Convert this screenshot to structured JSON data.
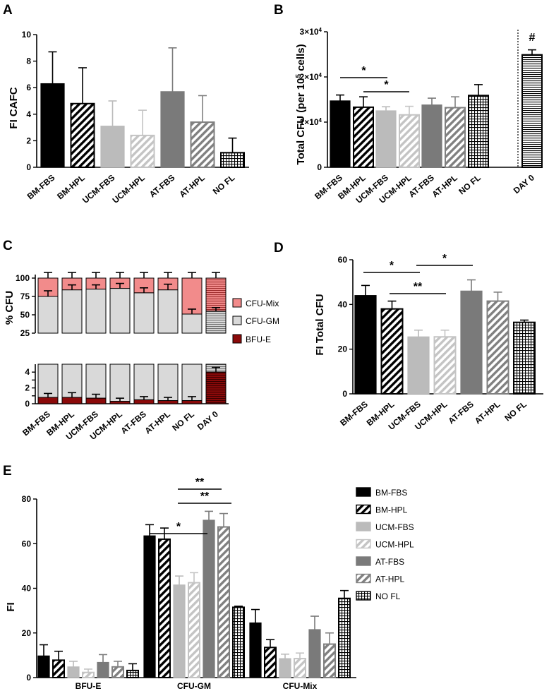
{
  "figure": {
    "panel_labels": [
      "A",
      "B",
      "C",
      "D",
      "E"
    ]
  },
  "groups": [
    "BM-FBS",
    "BM-HPL",
    "UCM-FBS",
    "UCM-HPL",
    "AT-FBS",
    "AT-HPL",
    "NO FL"
  ],
  "style_colors": {
    "black": "#000000",
    "light_gray": "#bbbbbb",
    "dark_gray": "#7a7a7a",
    "cfu_mix": "#f28b8b",
    "cfu_gm": "#d9d9d9",
    "bfu_e": "#8b0a0a"
  },
  "chart_data": [
    {
      "panel": "A",
      "type": "bar",
      "ylabel": "FI CAFC",
      "ylim": [
        0,
        10
      ],
      "yticks": [
        "0",
        "2",
        "4",
        "6",
        "8",
        "10"
      ],
      "categories": [
        "BM-FBS",
        "BM-HPL",
        "UCM-FBS",
        "UCM-HPL",
        "AT-FBS",
        "AT-HPL",
        "NO FL"
      ],
      "values": [
        6.3,
        4.8,
        3.1,
        2.4,
        5.7,
        3.4,
        1.1
      ],
      "errors": [
        2.4,
        2.7,
        1.9,
        1.9,
        3.3,
        2.0,
        1.1
      ]
    },
    {
      "panel": "B",
      "type": "bar",
      "ylabel": "Total CFU (per 10^5 cells)",
      "ylim": [
        0,
        30000
      ],
      "yticks": [
        "0",
        "1×10^4",
        "2×10^4",
        "3×10^4"
      ],
      "categories": [
        "BM-FBS",
        "BM-HPL",
        "UCM-FBS",
        "UCM-HPL",
        "AT-FBS",
        "AT-HPL",
        "NO FL",
        "DAY 0"
      ],
      "values": [
        14700,
        13300,
        12500,
        11600,
        13800,
        13200,
        15900,
        24900
      ],
      "errors": [
        1300,
        2300,
        900,
        1900,
        1500,
        2400,
        2400,
        1100
      ],
      "annotations": [
        "*",
        "*",
        "#"
      ]
    },
    {
      "panel": "C",
      "type": "bar",
      "stacked": true,
      "ylabel": "% CFU",
      "yticks_top": [
        "25",
        "50",
        "75",
        "100"
      ],
      "yticks_bottom": [
        "0",
        "2",
        "4"
      ],
      "categories": [
        "BM-FBS",
        "BM-HPL",
        "UCM-FBS",
        "UCM-HPL",
        "AT-FBS",
        "AT-HPL",
        "NO FL",
        "DAY 0"
      ],
      "legend": [
        "CFU-Mix",
        "CFU-GM",
        "BFU-E"
      ],
      "series": [
        {
          "name": "BFU-E",
          "values": [
            0.8,
            0.8,
            0.7,
            0.3,
            0.5,
            0.4,
            0.4,
            4.0
          ],
          "errors": [
            0.5,
            0.6,
            0.5,
            0.4,
            0.4,
            0.4,
            0.5,
            0.6
          ]
        },
        {
          "name": "CFU-GM",
          "values": [
            74.2,
            83.2,
            84.3,
            85.7,
            79.5,
            83.6,
            50.6,
            51.0
          ],
          "errors": [
            4,
            3,
            2,
            3,
            3,
            4,
            3,
            1
          ]
        },
        {
          "name": "CFU-Mix",
          "values": [
            25,
            16,
            15,
            14,
            20,
            16,
            49,
            45
          ],
          "errors": [
            3,
            3,
            2,
            3,
            3,
            4,
            3,
            1
          ]
        }
      ]
    },
    {
      "panel": "D",
      "type": "bar",
      "ylabel": "FI Total CFU",
      "ylim": [
        0,
        60
      ],
      "yticks": [
        "0",
        "20",
        "40",
        "60"
      ],
      "categories": [
        "BM-FBS",
        "BM-HPL",
        "UCM-FBS",
        "UCM-HPL",
        "AT-FBS",
        "AT-HPL",
        "NO FL"
      ],
      "values": [
        44,
        38,
        25.5,
        25.5,
        46,
        41.5,
        32
      ],
      "errors": [
        4.5,
        3.5,
        3,
        3,
        5,
        4,
        1
      ],
      "annotations": [
        "*",
        "*",
        "**"
      ]
    },
    {
      "panel": "E",
      "type": "bar",
      "ylabel": "FI",
      "ylim": [
        0,
        80
      ],
      "yticks": [
        "0",
        "20",
        "40",
        "60",
        "80"
      ],
      "categories": [
        "BFU-E",
        "CFU-GM",
        "CFU-Mix"
      ],
      "legend": [
        "BM-FBS",
        "BM-HPL",
        "UCM-FBS",
        "UCM-HPL",
        "AT-FBS",
        "AT-HPL",
        "NO FL"
      ],
      "series": [
        {
          "name": "BM-FBS",
          "values": [
            9.7,
            63.5,
            24.5
          ],
          "errors": [
            5,
            5,
            6
          ]
        },
        {
          "name": "BM-HPL",
          "values": [
            7.8,
            62,
            13.5
          ],
          "errors": [
            4,
            5,
            3.5
          ]
        },
        {
          "name": "UCM-FBS",
          "values": [
            4.8,
            41.5,
            8.5
          ],
          "errors": [
            2.5,
            4,
            2
          ]
        },
        {
          "name": "UCM-HPL",
          "values": [
            2.3,
            42.5,
            8.5
          ],
          "errors": [
            1.5,
            4.5,
            2.5
          ]
        },
        {
          "name": "AT-FBS",
          "values": [
            6.8,
            70.5,
            21.5
          ],
          "errors": [
            3.5,
            4,
            6
          ]
        },
        {
          "name": "AT-HPL",
          "values": [
            4.8,
            67.5,
            15
          ],
          "errors": [
            2.5,
            6,
            5
          ]
        },
        {
          "name": "NO FL",
          "values": [
            3.2,
            31.5,
            35.5
          ],
          "errors": [
            3,
            0.5,
            3.5
          ]
        }
      ],
      "annotations": [
        "*",
        "**",
        "**"
      ]
    }
  ]
}
